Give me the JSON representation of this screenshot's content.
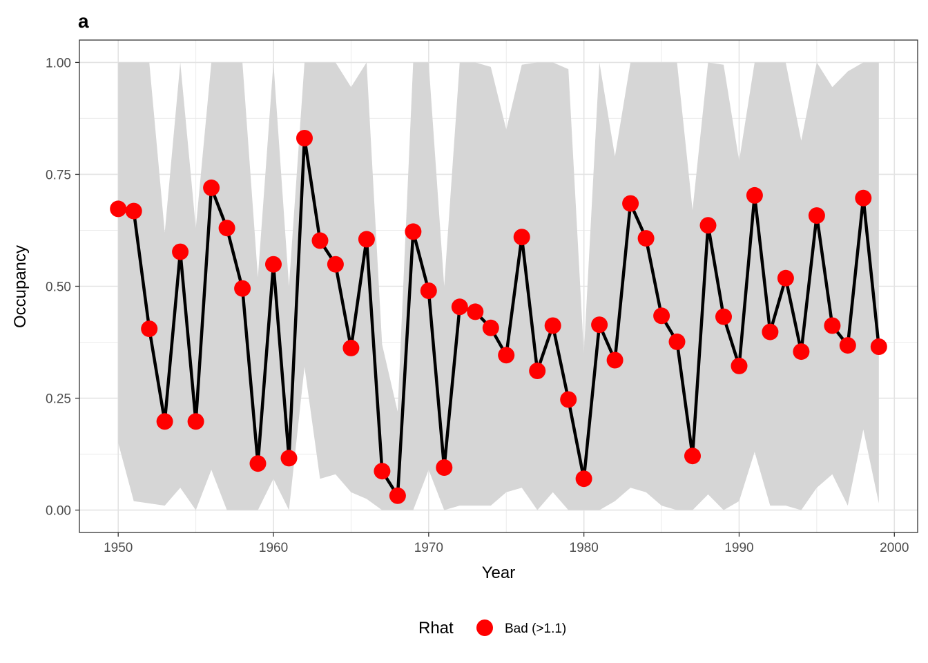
{
  "chart_data": {
    "type": "line",
    "title": "a",
    "xlabel": "Year",
    "ylabel": "Occupancy",
    "xlim": [
      1947.5,
      2001.5
    ],
    "ylim": [
      -0.05,
      1.05
    ],
    "x_ticks": [
      1950,
      1960,
      1970,
      1980,
      1990,
      2000
    ],
    "x_tick_labels": [
      "1950",
      "1960",
      "1970",
      "1980",
      "1990",
      "2000"
    ],
    "y_ticks": [
      0,
      0.25,
      0.5,
      0.75,
      1.0
    ],
    "y_tick_labels": [
      "0.00",
      "0.25",
      "0.50",
      "0.75",
      "1.00"
    ],
    "grid": true,
    "legend": {
      "position": "bottom",
      "title": "Rhat",
      "entries": [
        {
          "label": "Bad (>1.1)",
          "color": "#ff0000"
        }
      ]
    },
    "colors": {
      "line": "#000000",
      "points": "#ff0000",
      "ribbon": "#d6d6d6"
    },
    "x": [
      1950,
      1951,
      1952,
      1953,
      1954,
      1955,
      1956,
      1957,
      1958,
      1959,
      1960,
      1961,
      1962,
      1963,
      1964,
      1965,
      1966,
      1967,
      1968,
      1969,
      1970,
      1971,
      1972,
      1973,
      1974,
      1975,
      1976,
      1977,
      1978,
      1979,
      1980,
      1981,
      1982,
      1983,
      1984,
      1985,
      1986,
      1987,
      1988,
      1989,
      1990,
      1991,
      1992,
      1993,
      1994,
      1995,
      1996,
      1997,
      1998,
      1999
    ],
    "series": [
      {
        "values": [
          0.673,
          0.668,
          0.405,
          0.198,
          0.577,
          0.198,
          0.72,
          0.63,
          0.495,
          0.104,
          0.549,
          0.116,
          0.831,
          0.602,
          0.549,
          0.362,
          0.605,
          0.087,
          0.032,
          0.622,
          0.49,
          0.095,
          0.454,
          0.443,
          0.407,
          0.346,
          0.61,
          0.311,
          0.412,
          0.247,
          0.07,
          0.414,
          0.335,
          0.685,
          0.607,
          0.434,
          0.376,
          0.121,
          0.636,
          0.432,
          0.322,
          0.703,
          0.398,
          0.518,
          0.354,
          0.658,
          0.412,
          0.368,
          0.697,
          0.365
        ],
        "lower": [
          0.15,
          0.02,
          0.015,
          0.01,
          0.05,
          0.0,
          0.09,
          0.0,
          0.0,
          0.0,
          0.07,
          0.0,
          0.32,
          0.07,
          0.08,
          0.04,
          0.025,
          0.0,
          0.0,
          0.0,
          0.09,
          0.0,
          0.01,
          0.01,
          0.01,
          0.04,
          0.05,
          0.0,
          0.04,
          0.0,
          0.0,
          0.0,
          0.02,
          0.05,
          0.04,
          0.01,
          0.0,
          0.0,
          0.035,
          0.0,
          0.02,
          0.13,
          0.01,
          0.01,
          0.0,
          0.05,
          0.08,
          0.01,
          0.18,
          0.015
        ],
        "upper": [
          1.0,
          1.0,
          1.0,
          0.62,
          1.0,
          0.63,
          1.0,
          1.0,
          1.0,
          0.52,
          1.0,
          0.5,
          1.0,
          1.0,
          1.0,
          0.945,
          1.0,
          0.37,
          0.22,
          1.0,
          1.0,
          0.5,
          1.0,
          1.0,
          0.99,
          0.85,
          0.995,
          1.0,
          1.0,
          0.985,
          0.35,
          1.0,
          0.79,
          1.0,
          1.0,
          1.0,
          1.0,
          0.67,
          1.0,
          0.995,
          0.78,
          1.0,
          1.0,
          1.0,
          0.825,
          1.0,
          0.945,
          0.98,
          1.0,
          1.0
        ]
      }
    ]
  }
}
